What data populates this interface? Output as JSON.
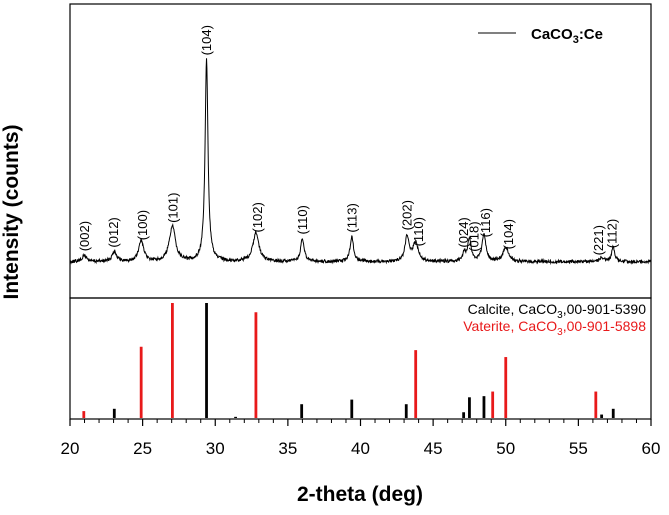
{
  "chart_data": {
    "type": "line",
    "xlabel": "2-theta (deg)",
    "ylabel": "Intensity (counts)",
    "xlim": [
      20,
      60
    ],
    "xticks": [
      20,
      25,
      30,
      35,
      40,
      45,
      50,
      55,
      60
    ],
    "grid": false,
    "legend": {
      "placement": "top-right",
      "entries": [
        {
          "name": "CaCO",
          "sub": "3",
          "suffix": ":Ce"
        }
      ]
    },
    "pattern": {
      "name": "CaCO3:Ce",
      "baseline": 0.03,
      "peaks": [
        {
          "x": 21.0,
          "h": 0.03,
          "w": 0.18
        },
        {
          "x": 23.05,
          "h": 0.05,
          "w": 0.18
        },
        {
          "x": 24.9,
          "h": 0.1,
          "w": 0.2
        },
        {
          "x": 27.05,
          "h": 0.17,
          "w": 0.25
        },
        {
          "x": 29.4,
          "h": 0.97,
          "w": 0.12
        },
        {
          "x": 32.8,
          "h": 0.14,
          "w": 0.24
        },
        {
          "x": 36.0,
          "h": 0.11,
          "w": 0.14
        },
        {
          "x": 39.4,
          "h": 0.12,
          "w": 0.14
        },
        {
          "x": 43.2,
          "h": 0.12,
          "w": 0.16
        },
        {
          "x": 43.8,
          "h": 0.09,
          "w": 0.22
        },
        {
          "x": 47.15,
          "h": 0.04,
          "w": 0.12
        },
        {
          "x": 47.5,
          "h": 0.11,
          "w": 0.14
        },
        {
          "x": 48.5,
          "h": 0.13,
          "w": 0.16
        },
        {
          "x": 50.0,
          "h": 0.07,
          "w": 0.22
        },
        {
          "x": 56.6,
          "h": 0.02,
          "w": 0.2
        },
        {
          "x": 57.4,
          "h": 0.07,
          "w": 0.13
        }
      ]
    },
    "peak_labels": [
      {
        "x": 21.0,
        "label": "(002)"
      },
      {
        "x": 23.0,
        "label": "(012)"
      },
      {
        "x": 25.0,
        "label": "(100)"
      },
      {
        "x": 27.1,
        "label": "(101)"
      },
      {
        "x": 29.4,
        "label": "(104)"
      },
      {
        "x": 32.9,
        "label": "(102)"
      },
      {
        "x": 36.0,
        "label": "(110)"
      },
      {
        "x": 39.4,
        "label": "(113)"
      },
      {
        "x": 43.2,
        "label": "(202)"
      },
      {
        "x": 44.0,
        "label": "(110)"
      },
      {
        "x": 47.1,
        "label": "(024)"
      },
      {
        "x": 47.8,
        "label": "(018)"
      },
      {
        "x": 48.6,
        "label": "(116)"
      },
      {
        "x": 50.2,
        "label": "(104)"
      },
      {
        "x": 56.4,
        "label": "(221)"
      },
      {
        "x": 57.3,
        "label": "(112)"
      }
    ],
    "reference_series": [
      {
        "name": "Calcite, CaCO",
        "sub": "3",
        "suffix": ",00-901-5390",
        "color": "#000000",
        "lines": [
          {
            "x": 23.05,
            "h": 0.08
          },
          {
            "x": 29.4,
            "h": 1.0
          },
          {
            "x": 31.4,
            "h": 0.01
          },
          {
            "x": 35.95,
            "h": 0.12
          },
          {
            "x": 39.4,
            "h": 0.16
          },
          {
            "x": 43.15,
            "h": 0.12
          },
          {
            "x": 47.1,
            "h": 0.05
          },
          {
            "x": 47.5,
            "h": 0.18
          },
          {
            "x": 48.5,
            "h": 0.19
          },
          {
            "x": 56.6,
            "h": 0.03
          },
          {
            "x": 57.4,
            "h": 0.08
          }
        ]
      },
      {
        "name": "Vaterite, CaCO",
        "sub": "3",
        "suffix": ",00-901-5898",
        "color": "#e8191a",
        "lines": [
          {
            "x": 20.95,
            "h": 0.06
          },
          {
            "x": 24.9,
            "h": 0.62
          },
          {
            "x": 27.05,
            "h": 1.0
          },
          {
            "x": 32.8,
            "h": 0.92
          },
          {
            "x": 43.8,
            "h": 0.59
          },
          {
            "x": 49.1,
            "h": 0.23
          },
          {
            "x": 50.0,
            "h": 0.53
          },
          {
            "x": 56.2,
            "h": 0.23
          }
        ]
      }
    ]
  }
}
